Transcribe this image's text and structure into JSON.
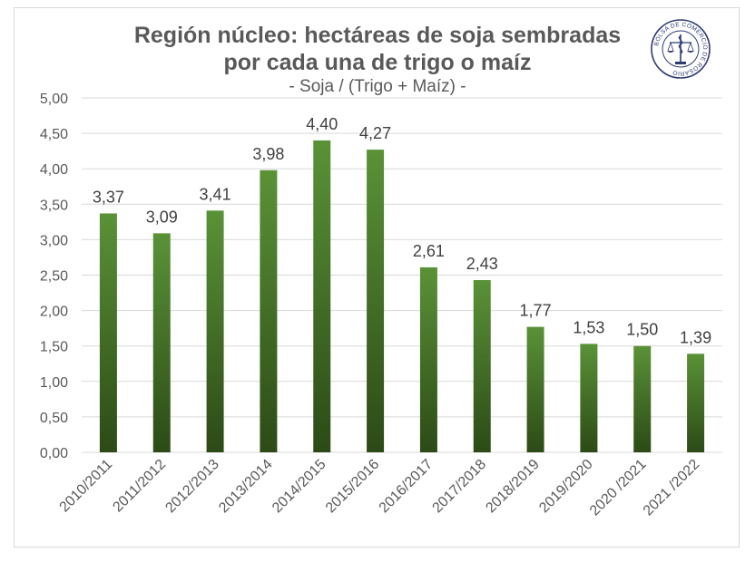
{
  "header": {
    "title_line1": "Región núcleo: hectáreas de soja sembradas",
    "title_line2": "por cada una de trigo o maíz",
    "subtitle": "- Soja / (Trigo + Maíz) -"
  },
  "logo": {
    "text": "BOLSA DE COMERCIO DE ROSARIO",
    "color": "#2f3b73"
  },
  "chart_data": {
    "type": "bar",
    "title": "Región núcleo: hectáreas de soja sembradas por cada una de trigo o maíz",
    "subtitle": "- Soja / (Trigo + Maíz) -",
    "categories": [
      "2010/2011",
      "2011/2012",
      "2012/2013",
      "2013/2014",
      "2014/2015",
      "2015/2016",
      "2016/2017",
      "2017/2018",
      "2018/2019",
      "2019/2020",
      "2020 /2021",
      "2021 /2022"
    ],
    "values": [
      3.37,
      3.09,
      3.41,
      3.98,
      4.4,
      4.27,
      2.61,
      2.43,
      1.77,
      1.53,
      1.5,
      1.39
    ],
    "data_labels": [
      "3,37",
      "3,09",
      "3,41",
      "3,98",
      "4,40",
      "4,27",
      "2,61",
      "2,43",
      "1,77",
      "1,53",
      "1,50",
      "1,39"
    ],
    "y_ticks": [
      0,
      0.5,
      1,
      1.5,
      2,
      2.5,
      3,
      3.5,
      4,
      4.5,
      5
    ],
    "y_tick_labels": [
      "0,00",
      "0,50",
      "1,00",
      "1,50",
      "2,00",
      "2,50",
      "3,00",
      "3,50",
      "4,00",
      "4,50",
      "5,00"
    ],
    "ylim": [
      0,
      5
    ],
    "xlabel": "",
    "ylabel": "",
    "grid": true,
    "legend": "none",
    "bar_color_top": "#5a9237",
    "bar_color_bottom": "#2c4a16",
    "grid_color": "#d9d9d9"
  }
}
